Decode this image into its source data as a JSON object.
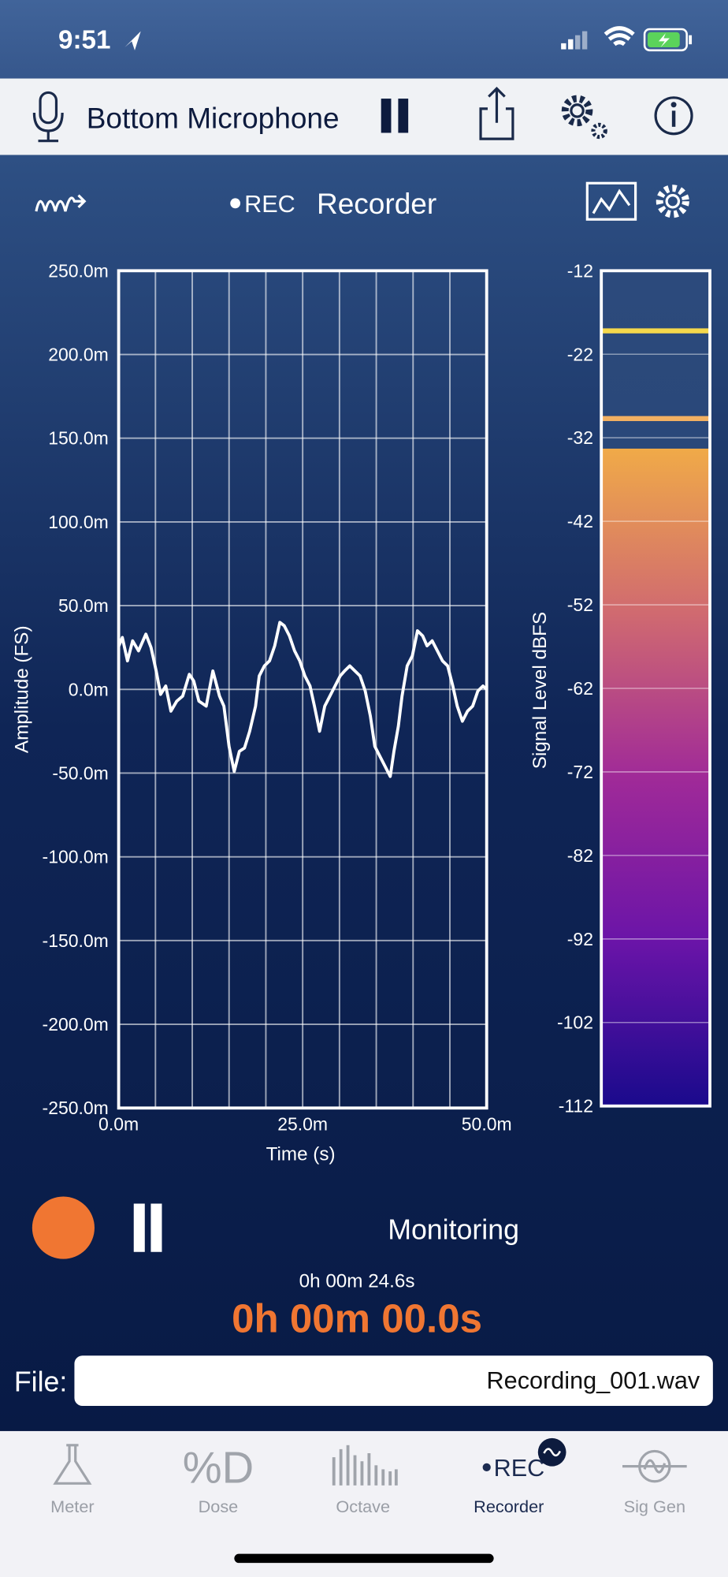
{
  "status_bar": {
    "time": "9:51"
  },
  "toolbar": {
    "title": "Bottom Microphone"
  },
  "panel": {
    "rec_label": "REC",
    "title": "Recorder"
  },
  "chart_data": [
    {
      "type": "line",
      "y_label": "Amplitude (FS)",
      "x_label": "Time (s)",
      "x": [
        0,
        0.5,
        1.2,
        1.9,
        2.7,
        3.7,
        4.4,
        5.1,
        5.7,
        6.4,
        7.1,
        7.9,
        8.7,
        9.6,
        10.2,
        10.9,
        11.9,
        12.8,
        13.7,
        14.3,
        15.0,
        15.7,
        16.4,
        17.1,
        17.8,
        18.6,
        19.1,
        19.8,
        20.5,
        21.2,
        21.9,
        22.5,
        23.2,
        23.9,
        24.6,
        25.3,
        26.0,
        26.6,
        27.3,
        28.0,
        28.7,
        29.4,
        30.1,
        30.7,
        31.4,
        32.1,
        32.8,
        33.5,
        34.2,
        34.8,
        35.5,
        36.2,
        36.9,
        37.4,
        38.0,
        38.5,
        39.2,
        39.9,
        40.6,
        41.3,
        41.9,
        42.6,
        43.3,
        44.0,
        44.7,
        45.4,
        46.0,
        46.7,
        47.4,
        48.1,
        48.8,
        49.5,
        50
      ],
      "series": [
        {
          "color": "#ffffff",
          "values": [
            25.6,
            31,
            17,
            29,
            23,
            33,
            25,
            11,
            -3,
            2,
            -13,
            -7,
            -4,
            9,
            5,
            -7,
            -10,
            11,
            -4,
            -10,
            -34,
            -49,
            -37,
            -35,
            -25,
            -10,
            8,
            14,
            17,
            26,
            40,
            38,
            32,
            23,
            17,
            8,
            2,
            -10,
            -25,
            -10,
            -4,
            2,
            8,
            11,
            14,
            11,
            8,
            -1,
            -16,
            -34,
            -40,
            -46,
            -52,
            -37,
            -22,
            -4,
            14,
            20,
            35,
            32,
            26,
            29,
            23,
            17,
            14,
            2,
            -10,
            -19,
            -13,
            -10,
            -1,
            2,
            0
          ]
        }
      ],
      "xlim": [
        0,
        50
      ],
      "xticks": [
        {
          "value": 0,
          "label": "0.0m"
        },
        {
          "value": 25,
          "label": "25.0m"
        },
        {
          "value": 50,
          "label": "50.0m"
        }
      ],
      "xgrid": [
        5,
        10,
        15,
        20,
        25,
        30,
        35,
        40,
        45
      ],
      "ylim": [
        -250,
        250
      ],
      "yticks": [
        {
          "value": 250,
          "label": "250.0m"
        },
        {
          "value": 200,
          "label": "200.0m"
        },
        {
          "value": 150,
          "label": "150.0m"
        },
        {
          "value": 100,
          "label": "100.0m"
        },
        {
          "value": 50,
          "label": "50.0m"
        },
        {
          "value": 0,
          "label": "0.0m"
        },
        {
          "value": -50,
          "label": "-50.0m"
        },
        {
          "value": -100,
          "label": "-100.0m"
        },
        {
          "value": -150,
          "label": "-150.0m"
        },
        {
          "value": -200,
          "label": "-200.0m"
        },
        {
          "value": -250,
          "label": "-250.0m"
        }
      ],
      "grid": true
    },
    {
      "type": "bar",
      "y_label": "Signal Level dBFS",
      "values": [
        -33.3
      ],
      "gradient": [
        "#f0aa48",
        "#d06a70",
        "#a02a98",
        "#6a14a8",
        "#1a0a8c"
      ],
      "markers": [
        {
          "value": -19.2,
          "color": "#f5d84c"
        },
        {
          "value": -29.7,
          "color": "#f2b062"
        }
      ],
      "ylim": [
        -112,
        -12
      ],
      "yticks": [
        -12,
        -22,
        -32,
        -42,
        -52,
        -62,
        -72,
        -82,
        -92,
        -102,
        -112
      ],
      "grid": true
    }
  ],
  "controls": {
    "status": "Monitoring",
    "elapsed": "0h 00m 24.6s",
    "timer": "0h 00m 00.0s"
  },
  "file": {
    "label": "File:",
    "name": "Recording_001.wav"
  },
  "tabs": [
    {
      "label": "Meter"
    },
    {
      "label": "Dose",
      "icon_text": "%D"
    },
    {
      "label": "Octave"
    },
    {
      "label": "Recorder",
      "icon_text": "REC"
    },
    {
      "label": "Sig Gen"
    }
  ]
}
